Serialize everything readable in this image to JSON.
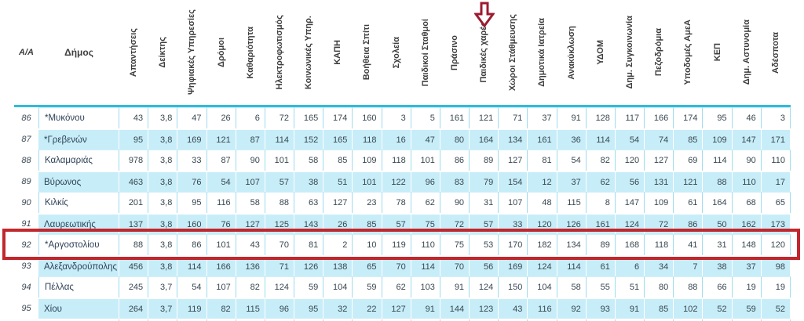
{
  "table": {
    "aa_header": "Α/Α",
    "dimos_header": "Δήμος",
    "column_headers": [
      "Απαντήσεις",
      "Δείκτης",
      "Ψηφιακές Υπηρεσίες",
      "Δρόμοι",
      "Καθαριότητα",
      "Ηλεκτροφωτισμός",
      "Κοινωνικές Υπηρ.",
      "ΚΑΠΗ",
      "Βοήθεια Σπίτι",
      "Σχολεία",
      "Παιδικοί Σταθμοί",
      "Πράσινο",
      "Παιδικές χαρές",
      "Χώροι Στάθμευσης",
      "Δημοτικά Ιατρεία",
      "Ανακύκλωση",
      "ΥΔΟΜ",
      "Δημ. Συγκοινωνία",
      "Πεζοδρόμια",
      "Υποδομές ΑμεΑ",
      "ΚΕΠ",
      "Δημ. Αστυνομία",
      "Αδέσποτα"
    ],
    "rows": [
      {
        "aa": "86",
        "name": "*Μυκόνου",
        "values": [
          "43",
          "3,8",
          "47",
          "26",
          "6",
          "72",
          "165",
          "174",
          "160",
          "3",
          "5",
          "161",
          "121",
          "71",
          "37",
          "91",
          "128",
          "117",
          "166",
          "174",
          "95",
          "46",
          "3"
        ]
      },
      {
        "aa": "87",
        "name": "*Γρεβενών",
        "values": [
          "95",
          "3,8",
          "169",
          "121",
          "87",
          "114",
          "152",
          "165",
          "118",
          "16",
          "47",
          "80",
          "164",
          "134",
          "161",
          "36",
          "114",
          "54",
          "74",
          "85",
          "109",
          "147",
          "171"
        ]
      },
      {
        "aa": "88",
        "name": "Καλαμαριάς",
        "values": [
          "978",
          "3,8",
          "33",
          "87",
          "90",
          "101",
          "58",
          "85",
          "109",
          "118",
          "101",
          "86",
          "89",
          "127",
          "81",
          "54",
          "82",
          "120",
          "127",
          "69",
          "114",
          "90",
          "110"
        ]
      },
      {
        "aa": "89",
        "name": "Βύρωνος",
        "values": [
          "463",
          "3,8",
          "76",
          "54",
          "107",
          "57",
          "38",
          "51",
          "101",
          "122",
          "96",
          "83",
          "79",
          "154",
          "12",
          "37",
          "62",
          "56",
          "131",
          "121",
          "88",
          "110",
          "17"
        ]
      },
      {
        "aa": "90",
        "name": "Κιλκίς",
        "values": [
          "201",
          "3,8",
          "95",
          "116",
          "58",
          "88",
          "63",
          "127",
          "23",
          "78",
          "62",
          "90",
          "31",
          "107",
          "48",
          "115",
          "8",
          "147",
          "109",
          "61",
          "164",
          "68",
          "65"
        ]
      },
      {
        "aa": "91",
        "name": "Λαυρεωτικής",
        "values": [
          "137",
          "3,8",
          "160",
          "76",
          "127",
          "125",
          "143",
          "26",
          "85",
          "57",
          "75",
          "72",
          "57",
          "33",
          "120",
          "126",
          "161",
          "124",
          "72",
          "86",
          "50",
          "162",
          "173"
        ]
      },
      {
        "aa": "92",
        "name": "*Αργοστολίου",
        "values": [
          "88",
          "3,8",
          "86",
          "101",
          "43",
          "70",
          "81",
          "2",
          "10",
          "119",
          "110",
          "75",
          "53",
          "170",
          "182",
          "134",
          "89",
          "168",
          "118",
          "41",
          "31",
          "148",
          "120"
        ],
        "highlighted": true
      },
      {
        "aa": "93",
        "name": "Αλεξανδρούπολης",
        "values": [
          "456",
          "3,8",
          "114",
          "166",
          "136",
          "71",
          "126",
          "138",
          "65",
          "70",
          "114",
          "70",
          "56",
          "169",
          "124",
          "114",
          "61",
          "6",
          "34",
          "7",
          "38",
          "37",
          "98"
        ]
      },
      {
        "aa": "94",
        "name": "Πέλλας",
        "values": [
          "245",
          "3,7",
          "54",
          "107",
          "82",
          "124",
          "59",
          "104",
          "59",
          "62",
          "103",
          "91",
          "124",
          "150",
          "104",
          "58",
          "55",
          "51",
          "80",
          "88",
          "66",
          "19",
          "19"
        ]
      },
      {
        "aa": "95",
        "name": "Χίου",
        "values": [
          "264",
          "3,7",
          "119",
          "82",
          "115",
          "96",
          "95",
          "32",
          "22",
          "127",
          "91",
          "144",
          "123",
          "43",
          "116",
          "92",
          "93",
          "91",
          "85",
          "102",
          "52",
          "59",
          "52"
        ]
      }
    ],
    "annotations": {
      "arrow_target_column": "Παιδικές χαρές",
      "highlighted_row_aa": "92"
    },
    "colors": {
      "row_stripe_cyan": "#c7edf8",
      "table_top_border": "#2fbcd9",
      "cell_border": "#9edcee",
      "highlight_box_border": "#c1272d",
      "arrow_outline": "#9c1b30",
      "header_text": "#3d3d3d",
      "body_text": "#37474f"
    }
  }
}
